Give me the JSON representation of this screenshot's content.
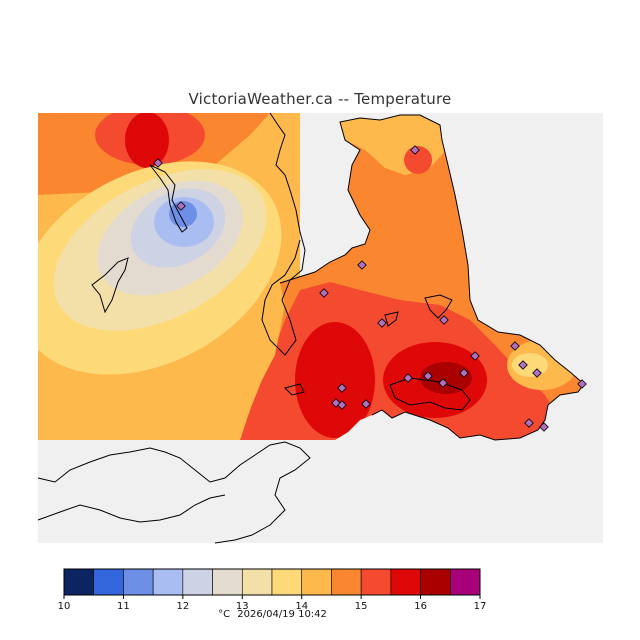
{
  "title": "VictoriaWeather.ca -- Temperature",
  "colors": {
    "background_sea": "#f0f0f0",
    "land_outline": "#000000",
    "station_marker": "#b070c0"
  },
  "legend": {
    "unit": "°C",
    "timestamp": "2026/04/19 10:42",
    "ticks": [
      "10",
      "11",
      "12",
      "13",
      "14",
      "15",
      "16",
      "17"
    ],
    "bins": [
      {
        "from": 10.0,
        "to": 10.5,
        "color": "#0c2462"
      },
      {
        "from": 10.5,
        "to": 11.0,
        "color": "#3366dd"
      },
      {
        "from": 11.0,
        "to": 11.5,
        "color": "#6d8fe6"
      },
      {
        "from": 11.5,
        "to": 12.0,
        "color": "#a9bdf2"
      },
      {
        "from": 12.0,
        "to": 12.5,
        "color": "#cdd2e4"
      },
      {
        "from": 12.5,
        "to": 13.0,
        "color": "#e4dbd0"
      },
      {
        "from": 13.0,
        "to": 13.5,
        "color": "#f3e0a8"
      },
      {
        "from": 13.5,
        "to": 14.0,
        "color": "#fdd978"
      },
      {
        "from": 14.0,
        "to": 14.5,
        "color": "#fdb94c"
      },
      {
        "from": 14.5,
        "to": 15.0,
        "color": "#fa8730"
      },
      {
        "from": 15.0,
        "to": 15.5,
        "color": "#f44a30"
      },
      {
        "from": 15.5,
        "to": 16.0,
        "color": "#df0808"
      },
      {
        "from": 16.0,
        "to": 16.5,
        "color": "#aa0000"
      },
      {
        "from": 16.5,
        "to": 17.0,
        "color": "#a80078"
      }
    ]
  }
}
